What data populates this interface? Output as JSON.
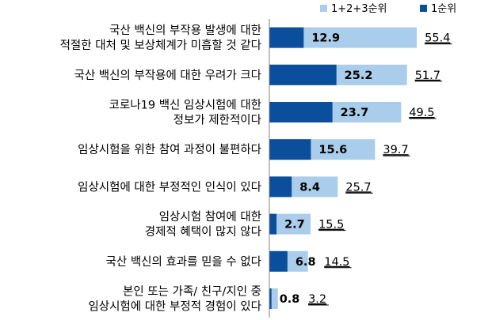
{
  "chart_data": {
    "type": "bar",
    "orientation": "horizontal",
    "grid": false,
    "legend_position": "top-right",
    "categories": [
      [
        "국산 백신의 부작용 발생에 대한",
        "적절한 대처 및 보상체계가 미흡할 것 같다"
      ],
      [
        "국산 백신의 부작용에 대한 우려가 크다"
      ],
      [
        "코로나19 백신 임상시험에 대한",
        "정보가 제한적이다"
      ],
      [
        "임상시험을 위한 참여 과정이 불편하다"
      ],
      [
        "임상시험에 대한 부정적인 인식이 있다"
      ],
      [
        "임상시험 참여에 대한",
        "경제적 혜택이 많지 않다"
      ],
      [
        "국산 백신의 효과를 믿을 수 없다"
      ],
      [
        "본인 또는 가족/ 친구/지인 중",
        "임상시험에 대한 부정적 경험이 있다"
      ]
    ],
    "series": [
      {
        "name": "1+2+3순위",
        "color": "#a9cdea",
        "values": [
          55.4,
          51.7,
          49.5,
          39.7,
          25.7,
          15.5,
          14.5,
          3.2
        ],
        "labels": [
          "55.4",
          "51.7",
          "49.5",
          "39.7",
          "25.7",
          "15.5",
          "14.5",
          "3.2"
        ]
      },
      {
        "name": "1순위",
        "color": "#0b4f9c",
        "values": [
          12.9,
          25.2,
          23.7,
          15.6,
          8.4,
          2.7,
          6.8,
          0.8
        ],
        "labels": [
          "12.9",
          "25.2",
          "23.7",
          "15.6",
          "8.4",
          "2.7",
          "6.8",
          "0.8"
        ]
      }
    ]
  }
}
